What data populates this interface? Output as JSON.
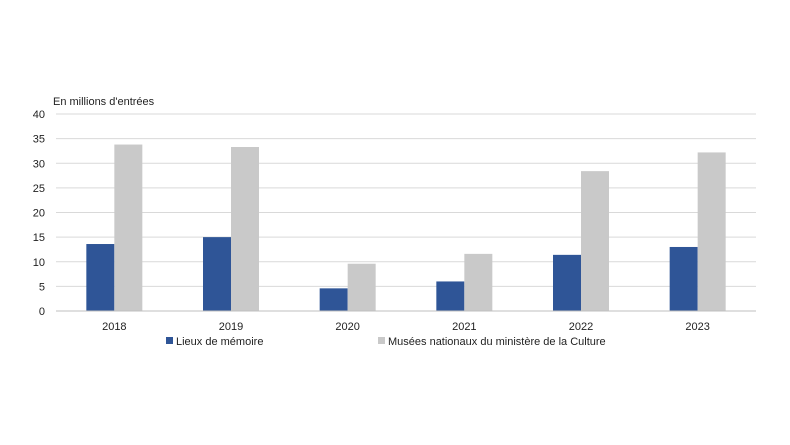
{
  "chart_data": {
    "type": "bar",
    "ylabel": "En millions d'entrées",
    "categories": [
      "2018",
      "2019",
      "2020",
      "2021",
      "2022",
      "2023"
    ],
    "ylim": [
      0,
      40
    ],
    "yticks": [
      0,
      5,
      10,
      15,
      20,
      25,
      30,
      35,
      40
    ],
    "grid": true,
    "legend_position": "bottom",
    "series": [
      {
        "name": "Lieux de mémoire",
        "color": "#2f5597",
        "values": [
          13.6,
          15.0,
          4.6,
          6.0,
          11.4,
          13.0
        ]
      },
      {
        "name": "Musées nationaux du ministère de la Culture",
        "color": "#c9c9c9",
        "values": [
          33.8,
          33.3,
          9.6,
          11.6,
          28.4,
          32.2
        ]
      }
    ]
  }
}
